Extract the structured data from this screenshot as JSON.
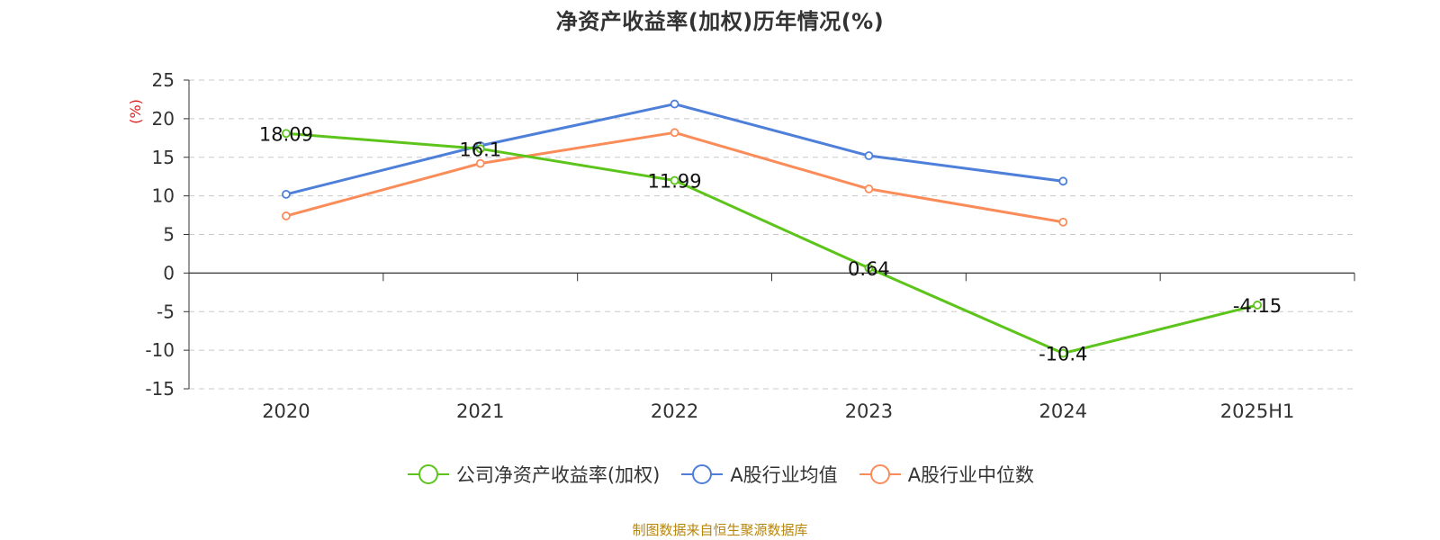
{
  "title": "净资产收益率(加权)历年情况(%)",
  "source": "制图数据来自恒生聚源数据库",
  "legend_items": [
    "公司净资产收益率(加权)",
    "A股行业均值",
    "A股行业中位数"
  ],
  "colors": {
    "company": "#5cc41a",
    "mean": "#4e7fd9",
    "median": "#fa8c5a",
    "unit_label": "#e02020"
  },
  "chart_data": {
    "type": "line",
    "title": "净资产收益率(加权)历年情况(%)",
    "ylabel": "(%)",
    "categories": [
      "2020",
      "2021",
      "2022",
      "2023",
      "2024",
      "2025H1"
    ],
    "ylim": [
      -15,
      25
    ],
    "yticks": [
      25,
      20,
      15,
      10,
      5,
      0,
      -5,
      -10,
      -15
    ],
    "grid": true,
    "legend_position": "bottom",
    "series": [
      {
        "name": "公司净资产收益率(加权)",
        "values": [
          18.09,
          16.1,
          11.99,
          0.64,
          -10.4,
          -4.15
        ],
        "labels": [
          "18.09",
          "16.1",
          "11.99",
          "0.64",
          "-10.4",
          "-4.15"
        ]
      },
      {
        "name": "A股行业均值",
        "values": [
          10.2,
          16.5,
          21.9,
          15.2,
          11.9,
          null
        ]
      },
      {
        "name": "A股行业中位数",
        "values": [
          7.4,
          14.2,
          18.2,
          10.9,
          6.6,
          null
        ]
      }
    ]
  }
}
